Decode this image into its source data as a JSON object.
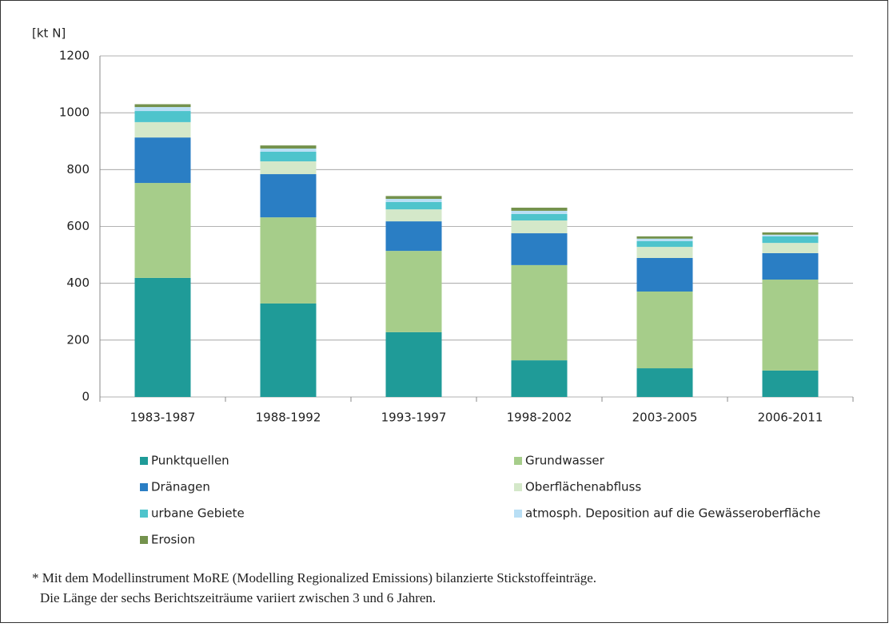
{
  "chart_data": {
    "type": "stacked_bar",
    "y_label": "[kt N]",
    "categories": [
      "1983-1987",
      "1988-1992",
      "1993-1997",
      "1998-2002",
      "2003-2005",
      "2006-2011"
    ],
    "series": [
      {
        "name": "Punktquellen",
        "color": "#1f9b98",
        "values": [
          419,
          329,
          228,
          129,
          101,
          93
        ]
      },
      {
        "name": "Grundwasser",
        "color": "#a6cd8a",
        "values": [
          334,
          303,
          286,
          335,
          270,
          320
        ]
      },
      {
        "name": "Dränagen",
        "color": "#2a7ec4",
        "values": [
          160,
          152,
          104,
          112,
          118,
          93
        ]
      },
      {
        "name": "Oberflächenabfluss",
        "color": "#d4e8c9",
        "values": [
          54,
          45,
          42,
          45,
          39,
          36
        ]
      },
      {
        "name": "urbane Gebiete",
        "color": "#4ec4cc",
        "values": [
          39,
          34,
          26,
          23,
          20,
          23
        ]
      },
      {
        "name": "atmosph. Deposition auf die Gewässeroberfläche",
        "color": "#b9dff5",
        "values": [
          14,
          11,
          11,
          11,
          9,
          6
        ]
      },
      {
        "name": "Erosion",
        "color": "#74924d",
        "values": [
          10,
          11,
          10,
          11,
          8,
          8
        ]
      }
    ],
    "ylim": [
      0,
      1200
    ],
    "yticks": [
      0,
      200,
      400,
      600,
      800,
      1000,
      1200
    ],
    "grid": true,
    "note": [
      "* Mit dem Modellinstrument MoRE (Modelling Regionalized Emissions) bilanzierte Stickstoffeinträge.",
      "Die Länge der sechs Berichtszeiträume variiert zwischen 3 und 6 Jahren."
    ]
  }
}
